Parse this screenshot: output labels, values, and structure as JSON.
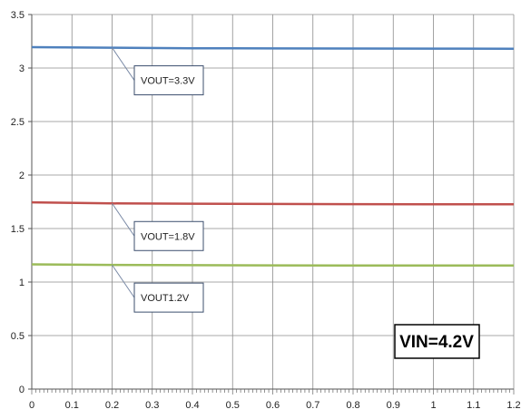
{
  "chart_data": {
    "type": "line",
    "xlim": [
      0,
      1.2
    ],
    "ylim": [
      0,
      3.5
    ],
    "x_ticks": [
      "0",
      "0.1",
      "0.2",
      "0.3",
      "0.4",
      "0.5",
      "0.6",
      "0.7",
      "0.8",
      "0.9",
      "1",
      "1.1",
      "1.2"
    ],
    "y_ticks": [
      "0",
      "0.5",
      "1",
      "1.5",
      "2",
      "2.5",
      "3",
      "3.5"
    ],
    "grid": true,
    "series": [
      {
        "color": "#4f81bd",
        "x": [
          0,
          0.2,
          0.4,
          0.6,
          0.8,
          1.0,
          1.2
        ],
        "y": [
          3.195,
          3.19,
          3.185,
          3.183,
          3.182,
          3.181,
          3.18
        ]
      },
      {
        "color": "#c0504d",
        "x": [
          0,
          0.2,
          0.4,
          0.6,
          0.8,
          1.0,
          1.2
        ],
        "y": [
          1.745,
          1.735,
          1.732,
          1.73,
          1.728,
          1.727,
          1.726
        ]
      },
      {
        "color": "#9bbb59",
        "x": [
          0,
          0.2,
          0.4,
          0.6,
          0.8,
          1.0,
          1.2
        ],
        "y": [
          1.165,
          1.16,
          1.158,
          1.156,
          1.155,
          1.154,
          1.154
        ]
      }
    ],
    "annotations": [
      {
        "text": "VOUT=3.3V",
        "series": 0
      },
      {
        "text": "VOUT=1.8V",
        "series": 1
      },
      {
        "text": "VOUT1.2V",
        "series": 2
      }
    ],
    "label_box": "VIN=4.2V"
  }
}
